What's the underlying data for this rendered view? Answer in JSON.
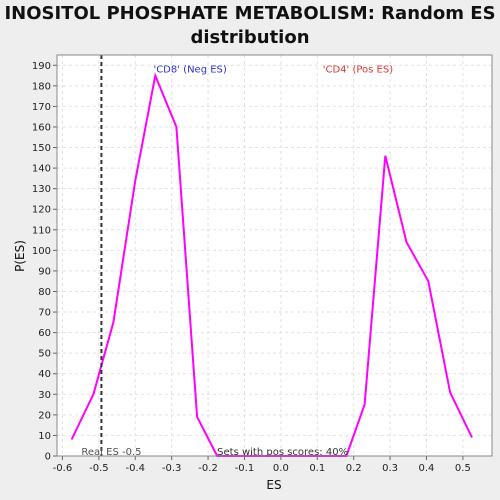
{
  "chart_data": {
    "type": "line",
    "title_lines": [
      "INOSITOL PHOSPHATE METABOLISM: Random ES",
      "distribution"
    ],
    "xlabel": "ES",
    "ylabel": "P(ES)",
    "xlim": [
      -0.615,
      0.58
    ],
    "ylim": [
      0,
      195
    ],
    "xticks": [
      -0.6,
      -0.5,
      -0.4,
      -0.3,
      -0.2,
      -0.1,
      0.0,
      0.1,
      0.2,
      0.3,
      0.4,
      0.5
    ],
    "yticks": [
      0,
      10,
      20,
      30,
      40,
      50,
      60,
      70,
      80,
      90,
      100,
      110,
      120,
      130,
      140,
      150,
      160,
      170,
      180,
      190
    ],
    "grid": true,
    "series": [
      {
        "color": "#ff00ff",
        "x": [
          -0.575,
          -0.515,
          -0.46,
          -0.4,
          -0.345,
          -0.287,
          -0.23,
          -0.175,
          0.18,
          0.23,
          0.287,
          0.345,
          0.405,
          0.465,
          0.525
        ],
        "y": [
          8,
          30,
          65,
          134,
          185,
          160,
          19,
          0,
          0,
          25,
          146,
          104,
          85,
          31,
          9
        ]
      }
    ],
    "real_es": {
      "x": -0.493,
      "label": "Real ES -0.5",
      "color": "#333333"
    },
    "annotations": [
      {
        "text": "'CD8' (Neg ES)",
        "x": -0.35,
        "y": 188,
        "color": "#3333cc"
      },
      {
        "text": "'CD4' (Pos ES)",
        "x": 0.115,
        "y": 188,
        "color": "#dd3333"
      },
      {
        "text": "Sets with pos scores: 40%",
        "x": -0.175,
        "y": 2,
        "color": "#333333"
      }
    ]
  }
}
